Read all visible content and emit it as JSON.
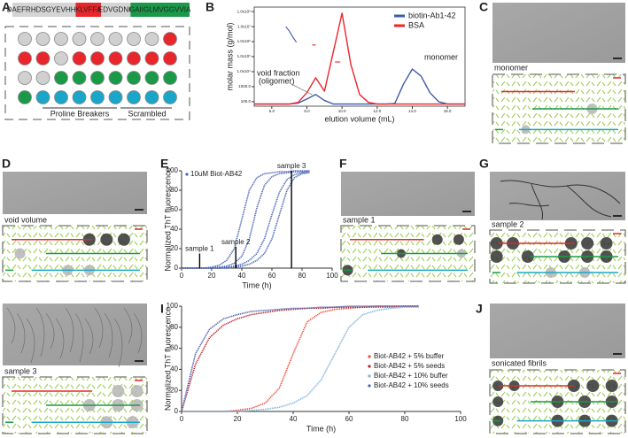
{
  "panel_a": {
    "panel": "A",
    "sequence": [
      {
        "text": "DAEFRHDSGYEVHHQ",
        "color": "#d4d4d4",
        "text_color": "#222222"
      },
      {
        "text": "KLVFFA",
        "color": "#e8262b",
        "text_color": "#ffffff"
      },
      {
        "text": "EDVGDNK",
        "color": "#d4d4d4",
        "text_color": "#222222"
      },
      {
        "text": "GAIIGLMVGGVVIA",
        "color": "#1a9a48",
        "text_color": "#111111"
      }
    ],
    "dot_rows": [
      [
        "#d0d0d0",
        "#d0d0d0",
        "#d0d0d0",
        "#d0d0d0",
        "#d0d0d0",
        "#d0d0d0",
        "#d0d0d0",
        "#d0d0d0",
        "#e8262b"
      ],
      [
        "#e8262b",
        "#e8262b",
        "#d0d0d0",
        "#e8262b",
        "#e8262b",
        "#e8262b",
        "#e8262b",
        "#e8262b",
        "#e8262b"
      ],
      [
        "#d0d0d0",
        "#d0d0d0",
        "#1a9a48",
        "#1a9a48",
        "#1a9a48",
        "#1a9a48",
        "#1a9a48",
        "#1a9a48",
        "#1a9a48"
      ],
      [
        "#1a9a48",
        "#1aa6c9",
        "#1aa6c9",
        "#1aa6c9",
        "#1aa6c9",
        "#1aa6c9",
        "#1aa6c9",
        "#1aa6c9",
        "#1aa6c9"
      ]
    ],
    "groups": [
      "Proline Breakers",
      "Scrambled"
    ]
  },
  "micrographs": [
    {
      "panel": "C",
      "caption": "monomer"
    },
    {
      "panel": "D",
      "caption": "void volume"
    },
    {
      "panel": "F",
      "caption": "sample 1"
    },
    {
      "panel": "G",
      "caption": "sample 2"
    },
    {
      "panel": "H",
      "caption": "sample 3"
    },
    {
      "panel": "J",
      "caption": "sonicated fibrils"
    }
  ],
  "chart_data": [
    {
      "panel": "B",
      "type": "line",
      "y_label": "molar mass (g/mol)",
      "x_label": "elution volume (mL)",
      "log_y": true,
      "frame": true,
      "legend": "top-right",
      "xlim": [
        5,
        17
      ],
      "xticks": [
        {
          "value": 6,
          "label": "6.0"
        },
        {
          "value": 8,
          "label": "8.0"
        },
        {
          "value": 10,
          "label": "10.0"
        },
        {
          "value": 12,
          "label": "12.0"
        },
        {
          "value": 14,
          "label": "14.0"
        },
        {
          "value": 16,
          "label": "16.0"
        }
      ],
      "ylim": [
        50,
        200000000
      ],
      "yticks": [
        {
          "value": 100,
          "label": "100.0"
        },
        {
          "value": 1000,
          "label": "1000.0"
        },
        {
          "value": 10000,
          "label": "1.0x10⁴"
        },
        {
          "value": 100000,
          "label": "1.0x10⁵"
        },
        {
          "value": 1000000,
          "label": "1.0x10⁶"
        },
        {
          "value": 10000000,
          "label": "1.0x10⁷"
        },
        {
          "value": 100000000,
          "label": "1.0x10⁸"
        }
      ],
      "x": [
        5,
        5.5,
        6,
        6.5,
        7,
        7.5,
        8,
        8.5,
        9,
        9.5,
        10,
        10.5,
        11,
        11.5,
        12,
        12.5,
        13,
        13.5,
        14,
        14.5,
        15,
        15.5,
        16,
        16.5,
        17
      ],
      "series": [
        {
          "name": "biotin-Ab1-42",
          "color": "#3a5ba9",
          "values": [
            70,
            70,
            70,
            70,
            70,
            80,
            150,
            300,
            120,
            70,
            70,
            70,
            70,
            70,
            70,
            70,
            75,
            1500,
            15000,
            5000,
            400,
            100,
            70,
            70,
            70
          ],
          "mass_x": [
            6.8,
            7.0,
            7.2,
            7.4
          ],
          "mass_values": [
            10000000,
            5000000,
            2000000,
            900000
          ]
        },
        {
          "name": "BSA",
          "color": "#e8262b",
          "values": [
            70,
            70,
            70,
            70,
            70,
            90,
            400,
            3900,
            500,
            200000,
            78000000,
            30000,
            300,
            90,
            70,
            70,
            70,
            70,
            70,
            70,
            70,
            70,
            70,
            70,
            70
          ],
          "mass_x": [
            8.3,
            8.5,
            9.0,
            9.6,
            9.9
          ],
          "mass_values": [
            600000,
            600000,
            null,
            44000,
            44000
          ]
        }
      ],
      "annotations": [
        "void fraction",
        "(oligomer)",
        "monomer"
      ]
    },
    {
      "panel": "E",
      "type": "line",
      "y_label": "Normalized ThT fluorescence",
      "x_label": "Time (h)",
      "legend_text": "10uM Biot-AB42",
      "legend_color": "#4a63b5",
      "xlim": [
        0,
        100
      ],
      "xticks": [
        0,
        20,
        40,
        60,
        80,
        100
      ],
      "ylim": [
        0,
        100
      ],
      "yticks": [
        0,
        20,
        40,
        60,
        80,
        100
      ],
      "x": [
        0,
        5,
        10,
        15,
        20,
        25,
        30,
        35,
        40,
        45,
        50,
        55,
        60,
        65,
        70,
        75,
        80,
        85
      ],
      "series": [
        {
          "color": "#4a63b5",
          "values": [
            0,
            0,
            0,
            0,
            1,
            3,
            8,
            20,
            50,
            80,
            93,
            97,
            98,
            99,
            99,
            100,
            100,
            100
          ]
        },
        {
          "color": "#4a63b5",
          "values": [
            0,
            0,
            0,
            0,
            0,
            1,
            2,
            5,
            12,
            30,
            62,
            85,
            94,
            97,
            98,
            99,
            99,
            100
          ]
        },
        {
          "color": "#4a63b5",
          "values": [
            0,
            0,
            0,
            0,
            0,
            0,
            1,
            2,
            4,
            8,
            15,
            30,
            55,
            78,
            91,
            96,
            98,
            99
          ]
        },
        {
          "color": "#4a63b5",
          "values": [
            0,
            0,
            0,
            0,
            0,
            0,
            0,
            1,
            2,
            4,
            8,
            15,
            30,
            55,
            80,
            93,
            97,
            98
          ]
        }
      ],
      "samples": [
        {
          "label": "sample 1",
          "time": 12,
          "height": 15
        },
        {
          "label": "sample 2",
          "time": 36,
          "height": 22
        },
        {
          "label": "sample 3",
          "time": 73,
          "height": 100
        }
      ]
    },
    {
      "panel": "I",
      "type": "line",
      "y_label": "Normalized ThT fluorescence",
      "x_label": "Time (h)",
      "legend": "right",
      "xlim": [
        0,
        100
      ],
      "xticks": [
        0,
        20,
        40,
        60,
        80,
        100
      ],
      "ylim": [
        0,
        100
      ],
      "yticks": [
        0,
        20,
        40,
        60,
        80,
        100
      ],
      "x": [
        0,
        5,
        10,
        15,
        20,
        25,
        30,
        35,
        40,
        45,
        50,
        55,
        60,
        65,
        70,
        75,
        80,
        85
      ],
      "series": [
        {
          "name": "Biot-AB42 + 5% buffer",
          "color": "#ef4a3c",
          "values": [
            0,
            0,
            0,
            0,
            1,
            3,
            8,
            22,
            55,
            85,
            94,
            97,
            98,
            99,
            99,
            99,
            100,
            100
          ]
        },
        {
          "name": "Biot-AB42 + 5% seeds",
          "color": "#b8262a",
          "values": [
            0,
            45,
            70,
            82,
            88,
            92,
            94,
            96,
            97,
            98,
            98,
            99,
            99,
            99,
            100,
            100,
            100,
            100
          ]
        },
        {
          "name": "Biot-AB42 + 10% buffer",
          "color": "#7fb3e0",
          "values": [
            0,
            0,
            0,
            0,
            0,
            1,
            2,
            4,
            8,
            15,
            30,
            55,
            80,
            92,
            96,
            98,
            99,
            99
          ]
        },
        {
          "name": "Biot-AB42 + 10% seeds",
          "color": "#4a5fb0",
          "values": [
            0,
            55,
            78,
            88,
            92,
            95,
            96,
            97,
            98,
            98,
            99,
            99,
            100,
            100,
            100,
            100,
            100,
            100
          ]
        }
      ]
    }
  ]
}
